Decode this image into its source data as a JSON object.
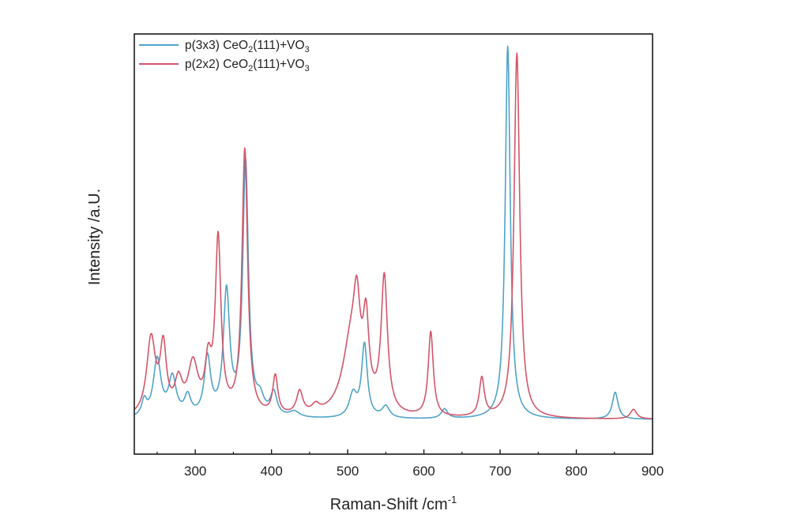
{
  "chart_data": {
    "type": "line",
    "title": "",
    "xlabel": "Raman-Shift /cm",
    "xlabel_superscript": "-1",
    "ylabel": "Intensity /a.U.",
    "xlim": [
      220,
      900
    ],
    "ylim": [
      0,
      1
    ],
    "x_ticks": [
      300,
      400,
      500,
      600,
      700,
      800,
      900
    ],
    "y_ticks_shown": false,
    "grid": false,
    "legend_position": "top-left",
    "series": [
      {
        "name_parts": [
          "p(3x3) CeO",
          "2",
          "(111)+VO",
          "3"
        ],
        "color": "#4fa3c7",
        "baseline": 0.09,
        "peaks": [
          [
            233,
            0.04,
            4
          ],
          [
            250,
            0.15,
            6
          ],
          [
            270,
            0.1,
            6
          ],
          [
            290,
            0.05,
            5
          ],
          [
            316,
            0.15,
            5
          ],
          [
            341,
            0.32,
            5
          ],
          [
            366,
            0.66,
            4.5
          ],
          [
            385,
            0.04,
            6
          ],
          [
            403,
            0.06,
            5
          ],
          [
            430,
            0.015,
            8
          ],
          [
            507,
            0.06,
            6
          ],
          [
            522,
            0.19,
            4.5
          ],
          [
            550,
            0.03,
            6
          ],
          [
            627,
            0.025,
            5
          ],
          [
            710,
            0.97,
            4
          ],
          [
            851,
            0.07,
            4.5
          ]
        ]
      },
      {
        "name_parts": [
          "p(2x2) CeO",
          "2",
          "(111)+VO",
          "3"
        ],
        "color": "#d2566a",
        "baseline": 0.09,
        "peaks": [
          [
            242,
            0.2,
            7
          ],
          [
            258,
            0.17,
            5
          ],
          [
            278,
            0.08,
            6
          ],
          [
            297,
            0.13,
            8
          ],
          [
            317,
            0.12,
            5
          ],
          [
            330,
            0.45,
            4.5
          ],
          [
            365,
            0.69,
            4.5
          ],
          [
            405,
            0.1,
            4
          ],
          [
            437,
            0.06,
            5
          ],
          [
            458,
            0.02,
            6
          ],
          [
            505,
            0.2,
            14
          ],
          [
            512,
            0.18,
            5
          ],
          [
            524,
            0.2,
            4.5
          ],
          [
            548,
            0.35,
            5
          ],
          [
            609,
            0.22,
            4
          ],
          [
            676,
            0.1,
            4
          ],
          [
            722,
            0.95,
            4.5
          ],
          [
            875,
            0.025,
            5
          ]
        ]
      }
    ]
  }
}
